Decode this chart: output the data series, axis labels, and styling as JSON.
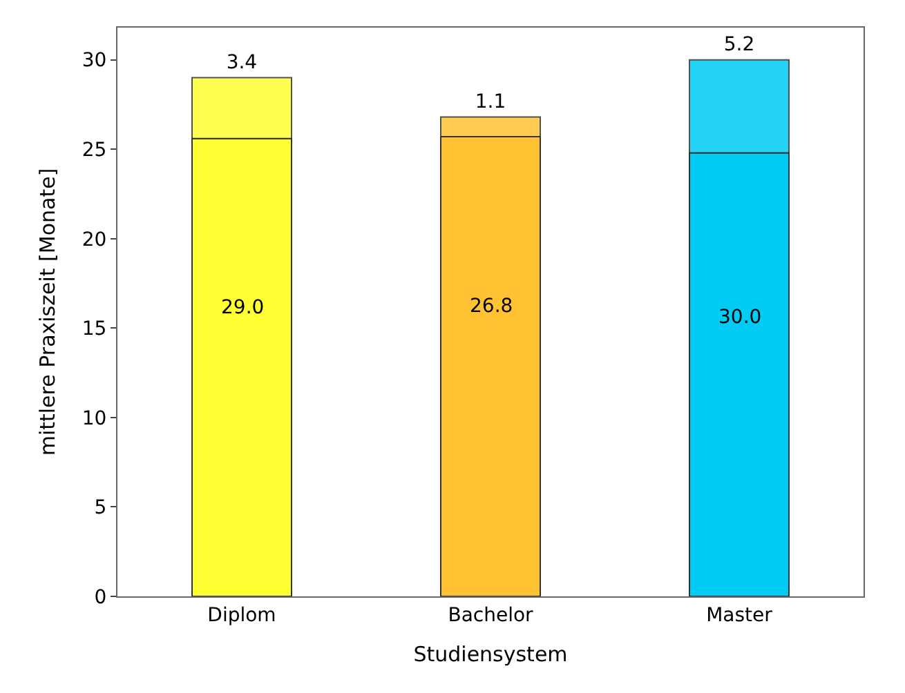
{
  "chart_data": {
    "type": "bar",
    "stacked": true,
    "xlabel": "Studiensystem",
    "ylabel": "mittlere Praxiszeit [Monate]",
    "categories": [
      "Diplom",
      "Bachelor",
      "Master"
    ],
    "series": [
      {
        "colors": [
          "#ffff33",
          "#ffc233",
          "#00ccf5"
        ],
        "values": [
          25.6,
          25.7,
          24.8
        ]
      },
      {
        "colors": [
          "#ffff33",
          "#ffc233",
          "#00ccf5"
        ],
        "values": [
          3.4,
          1.1,
          5.2
        ],
        "value_labels": [
          "3.4",
          "1.1",
          "5.2"
        ]
      }
    ],
    "totals": [
      "29.0",
      "26.8",
      "30.0"
    ],
    "ylim": [
      0,
      31.8
    ],
    "yticks": [
      0,
      5,
      10,
      15,
      20,
      25,
      30
    ]
  }
}
